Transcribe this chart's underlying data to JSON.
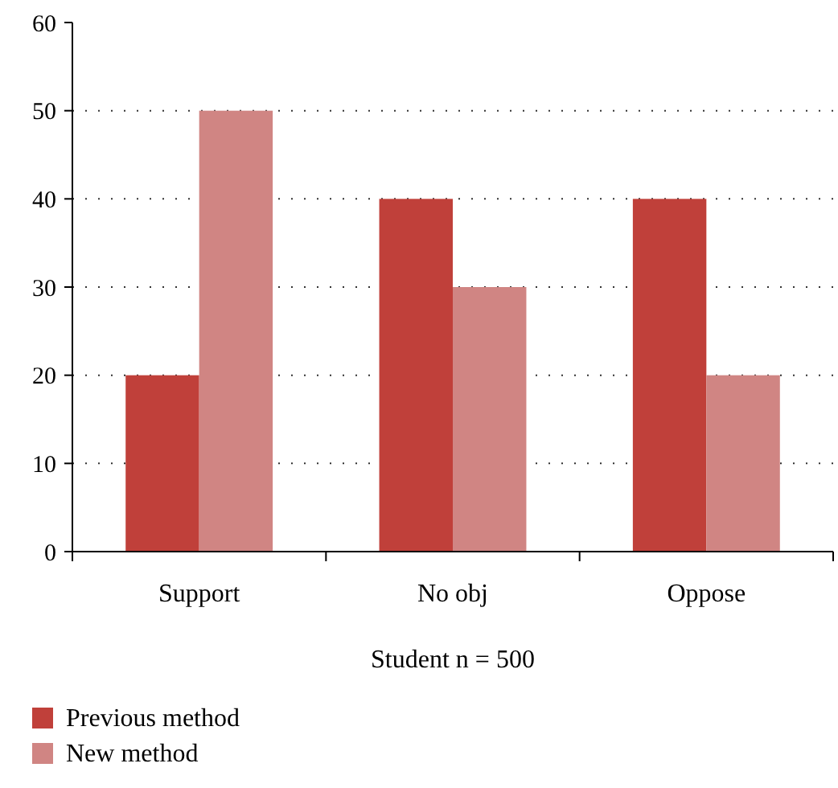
{
  "chart_data": {
    "type": "bar",
    "xlabel": "Student n = 500",
    "categories": [
      "Support",
      "No obj",
      "Oppose"
    ],
    "series": [
      {
        "name": "Previous method",
        "color": "#c0403a",
        "values": [
          20,
          40,
          40
        ]
      },
      {
        "name": "New method",
        "color": "#d08583",
        "values": [
          50,
          30,
          20
        ]
      }
    ],
    "ylim": [
      0,
      60
    ],
    "yticks": [
      0,
      10,
      20,
      30,
      40,
      50,
      60
    ],
    "grid": "y",
    "legend": "bottom"
  }
}
